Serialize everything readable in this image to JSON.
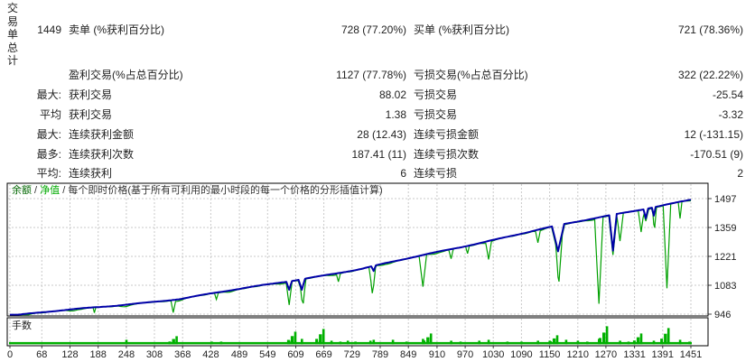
{
  "report": {
    "row_header_vertical": "交易单总计",
    "rows": [
      {
        "pre": "1449",
        "label": "卖单 (%获利百分比)",
        "value": "728 (77.20%)",
        "label2": "买单 (%获利百分比)",
        "value2": "721 (78.36%)"
      },
      {
        "pre": "",
        "label": "盈利交易(%占总百分比)",
        "value": "1127 (77.78%)",
        "label2": "亏损交易(%占总百分比)",
        "value2": "322 (22.22%)"
      },
      {
        "pre": "最大:",
        "label": "获利交易",
        "value": "88.02",
        "label2": "亏损交易",
        "value2": "-25.54"
      },
      {
        "pre": "平均",
        "label": "获利交易",
        "value": "1.38",
        "label2": "亏损交易",
        "value2": "-3.32"
      },
      {
        "pre": "最大:",
        "label": "连续获利金额",
        "value": "28 (12.43)",
        "label2": "连续亏损金额",
        "value2": "12 (-131.15)"
      },
      {
        "pre": "最多:",
        "label": "连续获利次数",
        "value": "187.41 (11)",
        "label2": "连续亏损次数",
        "value2": "-170.51 (9)"
      },
      {
        "pre": "平均:",
        "label": "连续获利",
        "value": "6",
        "label2": "连续亏损",
        "value2": "2"
      }
    ]
  },
  "chart_data": {
    "type": "line",
    "legend": {
      "balance_label": "余额",
      "equity_label": "净值",
      "separator": " / ",
      "method_label": "每个即时价格(基于所有可利用的最小时段的每一个价格的分形插值计算)",
      "balance_label_color": "#006600",
      "equity_label_color": "#00aa00",
      "method_color": "#333333"
    },
    "x_ticks": [
      0,
      68,
      128,
      188,
      248,
      308,
      368,
      428,
      489,
      549,
      609,
      669,
      729,
      789,
      849,
      910,
      970,
      1030,
      1090,
      1150,
      1210,
      1270,
      1331,
      1391,
      1451
    ],
    "y_ticks": [
      1497,
      1359,
      1221,
      1083,
      946
    ],
    "x_max": 1451,
    "grid_color": "#c9c9c9",
    "border_color": "#000000",
    "series": [
      {
        "name": "余额",
        "color": "#0000a8",
        "keypoints": [
          [
            0,
            937
          ],
          [
            364,
            1018
          ],
          [
            749,
            1161
          ],
          [
            1129,
            1350
          ],
          [
            1451,
            1493
          ]
        ],
        "drawdown_spikes": [
          [
            595,
            40,
            6
          ],
          [
            622,
            50,
            7
          ],
          [
            775,
            25,
            5
          ],
          [
            1168,
            125,
            13
          ],
          [
            1285,
            172,
            8
          ],
          [
            1355,
            45,
            5
          ],
          [
            1372,
            40,
            4
          ]
        ]
      },
      {
        "name": "净值",
        "color": "#00a000",
        "drawdown_spikes": [
          [
            180,
            25,
            3
          ],
          [
            348,
            55,
            5
          ],
          [
            440,
            30,
            4
          ],
          [
            595,
            65,
            6
          ],
          [
            625,
            80,
            6
          ],
          [
            700,
            35,
            4
          ],
          [
            772,
            115,
            7
          ],
          [
            880,
            150,
            8
          ],
          [
            940,
            45,
            5
          ],
          [
            975,
            35,
            4
          ],
          [
            1020,
            80,
            6
          ],
          [
            1125,
            55,
            5
          ],
          [
            1170,
            150,
            7
          ],
          [
            1255,
            410,
            9
          ],
          [
            1300,
            130,
            7
          ],
          [
            1345,
            100,
            6
          ],
          [
            1374,
            70,
            4
          ],
          [
            1400,
            400,
            8
          ],
          [
            1428,
            80,
            4
          ]
        ]
      }
    ],
    "lots_panel": {
      "label": "手数",
      "color": "#00b000",
      "bars": [
        [
          248,
          5
        ],
        [
          355,
          9
        ],
        [
          430,
          3
        ],
        [
          450,
          3
        ],
        [
          595,
          4
        ],
        [
          608,
          14
        ],
        [
          622,
          6
        ],
        [
          660,
          4
        ],
        [
          668,
          17
        ],
        [
          685,
          4
        ],
        [
          704,
          3
        ],
        [
          720,
          4
        ],
        [
          736,
          3
        ],
        [
          768,
          4
        ],
        [
          775,
          5
        ],
        [
          816,
          5
        ],
        [
          845,
          3
        ],
        [
          880,
          6
        ],
        [
          897,
          12
        ],
        [
          940,
          4
        ],
        [
          960,
          3
        ],
        [
          1000,
          4
        ],
        [
          1020,
          5
        ],
        [
          1060,
          3
        ],
        [
          1090,
          3
        ],
        [
          1125,
          4
        ],
        [
          1150,
          4
        ],
        [
          1166,
          10
        ],
        [
          1185,
          5
        ],
        [
          1210,
          4
        ],
        [
          1230,
          3
        ],
        [
          1255,
          6
        ],
        [
          1272,
          20
        ],
        [
          1300,
          4
        ],
        [
          1318,
          3
        ],
        [
          1345,
          12
        ],
        [
          1372,
          4
        ],
        [
          1403,
          18
        ],
        [
          1428,
          5
        ],
        [
          1448,
          3
        ]
      ]
    }
  }
}
